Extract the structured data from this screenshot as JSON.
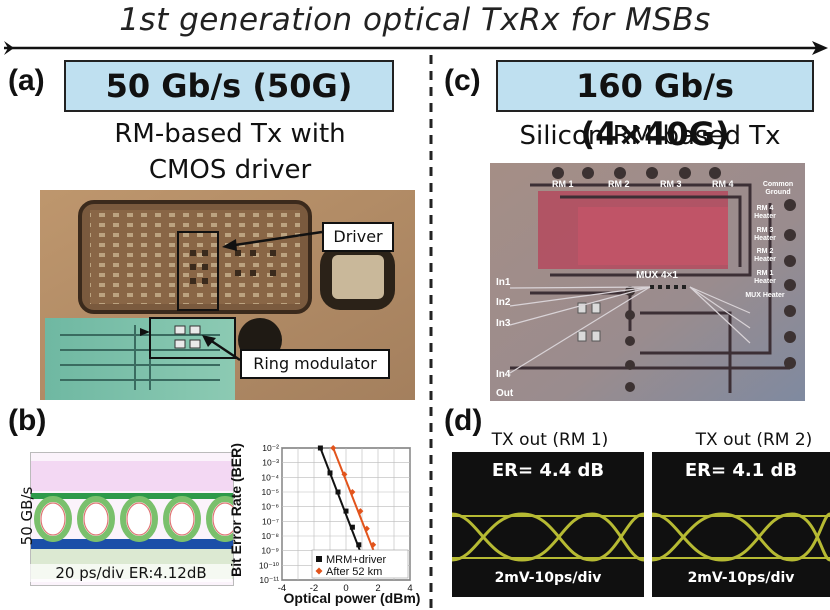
{
  "title": "1st generation optical TxRx for MSBs",
  "panel_a": {
    "label": "(a)",
    "rate": "50 Gb/s (50G)",
    "subtitle_line1": "RM-based Tx with",
    "subtitle_line2": "CMOS driver",
    "callout_driver": "Driver",
    "callout_ring": "Ring modulator"
  },
  "panel_b": {
    "label": "(b)",
    "eye_ylabel": "50 GB/s",
    "eye_caption": "20 ps/div ER:4.12dB",
    "ber_chart": {
      "ylabel": "Bit Error Rate (BER)",
      "xlabel": "Optical power (dBm)",
      "xticks": [
        "-4",
        "-2",
        "0",
        "2",
        "4"
      ],
      "yticks": [
        "10⁻²",
        "10⁻³",
        "10⁻⁴",
        "10⁻⁵",
        "10⁻⁶",
        "10⁻⁷",
        "10⁻⁸",
        "10⁻⁹",
        "10⁻¹⁰",
        "10⁻¹¹"
      ],
      "legend": [
        "MRM+driver",
        "After 52 km"
      ]
    }
  },
  "panel_c": {
    "label": "(c)",
    "rate": "160 Gb/s (4×40G)",
    "subtitle": "Silicon RM-based Tx",
    "rm_labels": [
      "RM 1",
      "RM 2",
      "RM 3",
      "RM 4"
    ],
    "right_labels": [
      "Common Ground",
      "RM 4 Heater",
      "RM 3 Heater",
      "RM 2 Heater",
      "RM 1 Heater",
      "MUX Heater"
    ],
    "mux_label": "MUX 4×1",
    "inputs": [
      "In1",
      "In2",
      "In3",
      "In4",
      "Out"
    ]
  },
  "panel_d": {
    "label": "(d)",
    "eyes": [
      {
        "title": "TX out (RM 1)",
        "er": "ER= 4.4 dB",
        "scale": "2mV-10ps/div"
      },
      {
        "title": "TX out (RM 2)",
        "er": "ER= 4.1 dB",
        "scale": "2mV-10ps/div"
      }
    ]
  },
  "chart_data": {
    "type": "line",
    "title": "",
    "xlabel": "Optical power (dBm)",
    "ylabel": "Bit Error Rate (BER)",
    "xlim": [
      -4,
      4
    ],
    "ylim_log10": [
      -11,
      -2
    ],
    "legend_placement": "bottom-right",
    "grid": true,
    "series": [
      {
        "name": "MRM+driver",
        "color": "#111111",
        "marker": "square",
        "x": [
          -1.6,
          -1.0,
          -0.5,
          0.0,
          0.4,
          0.8,
          1.1,
          1.4
        ],
        "y_log10": [
          -2,
          -3.7,
          -5.0,
          -6.3,
          -7.4,
          -8.6,
          -9.6,
          -10.5
        ]
      },
      {
        "name": "After 52 km",
        "color": "#e2541c",
        "marker": "diamond",
        "x": [
          -0.8,
          -0.1,
          0.4,
          0.9,
          1.3,
          1.7,
          2.0,
          2.3
        ],
        "y_log10": [
          -2,
          -3.8,
          -5.0,
          -6.3,
          -7.5,
          -8.6,
          -9.6,
          -10.6
        ]
      }
    ]
  }
}
